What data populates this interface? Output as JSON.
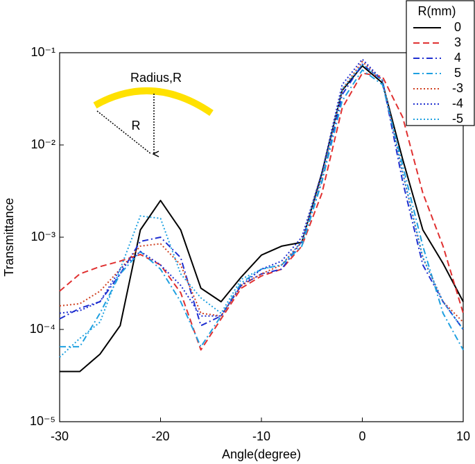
{
  "chart_data": {
    "type": "line",
    "yscale": "log",
    "xlabel": "Angle(degree)",
    "ylabel": "Transmittance",
    "annotations": [
      "Radius,R",
      "R"
    ],
    "legend_title": "R(mm)",
    "legend": "upper right",
    "xlim": [
      -30,
      10
    ],
    "xticks": [
      -30,
      -20,
      -10,
      0,
      10
    ],
    "ylim": [
      1e-05,
      0.1
    ],
    "yticks": [
      {
        "value": 1e-05,
        "label": "10⁻⁵"
      },
      {
        "value": 0.0001,
        "label": "10⁻⁴"
      },
      {
        "value": 0.001,
        "label": "10⁻³"
      },
      {
        "value": 0.01,
        "label": "10⁻²"
      },
      {
        "value": 0.1,
        "label": "10⁻¹"
      }
    ],
    "x": [
      -30,
      -28,
      -26,
      -24,
      -22,
      -20,
      -18,
      -16,
      -14,
      -12,
      -10,
      -8,
      -6,
      -4,
      -2,
      0,
      2,
      4,
      6,
      8,
      10
    ],
    "series": [
      {
        "name": "0",
        "color": "#000000",
        "dash": "solid",
        "values": [
          3.5e-05,
          3.5e-05,
          5.4e-05,
          0.00011,
          0.0012,
          0.0025,
          0.0012,
          0.00028,
          0.0002,
          0.00037,
          0.00064,
          0.0008,
          0.00088,
          0.005,
          0.039,
          0.072,
          0.047,
          0.007,
          0.0012,
          0.00052,
          0.0002
        ]
      },
      {
        "name": "3",
        "color": "#e03030",
        "dash": "dashed",
        "values": [
          0.00026,
          0.0004,
          0.00048,
          0.00055,
          0.00065,
          0.0005,
          0.00025,
          6e-05,
          0.00013,
          0.00028,
          0.00038,
          0.00045,
          0.0008,
          0.003,
          0.025,
          0.06,
          0.055,
          0.02,
          0.003,
          0.0008,
          0.00015
        ]
      },
      {
        "name": "4",
        "color": "#1f2fd0",
        "dash": "dashdot",
        "values": [
          0.00013,
          0.00017,
          0.0002,
          0.0004,
          0.0009,
          0.001,
          0.0006,
          0.00011,
          0.00014,
          0.0003,
          0.0004,
          0.00045,
          0.0009,
          0.004,
          0.035,
          0.075,
          0.05,
          0.004,
          0.0005,
          0.0002,
          0.0001
        ]
      },
      {
        "name": "5",
        "color": "#1ea0e0",
        "dash": "dashdot",
        "values": [
          6.5e-05,
          6.5e-05,
          0.00015,
          0.0004,
          0.0007,
          0.00045,
          0.0002,
          6.5e-05,
          0.00014,
          0.00032,
          0.00045,
          0.0005,
          0.0008,
          0.004,
          0.03,
          0.065,
          0.045,
          0.006,
          0.0008,
          0.00015,
          6e-05
        ]
      },
      {
        "name": "-3",
        "color": "#d04020",
        "dash": "dotted",
        "values": [
          0.00018,
          0.00019,
          0.00026,
          0.00045,
          0.0008,
          0.00085,
          0.0005,
          0.00015,
          0.00014,
          0.0003,
          0.0004,
          0.0005,
          0.0009,
          0.0045,
          0.04,
          0.08,
          0.05,
          0.005,
          0.0006,
          0.0002,
          0.00012
        ]
      },
      {
        "name": "-4",
        "color": "#1f2fd0",
        "dash": "dotted",
        "values": [
          0.00015,
          0.00016,
          0.0002,
          0.00045,
          0.0007,
          0.0005,
          0.0003,
          0.00014,
          0.00014,
          0.0003,
          0.00045,
          0.00055,
          0.001,
          0.005,
          0.045,
          0.085,
          0.05,
          0.005,
          0.0006,
          0.0002,
          0.0001
        ]
      },
      {
        "name": "-5",
        "color": "#1ea0e0",
        "dash": "dotted",
        "values": [
          5e-05,
          8e-05,
          0.00012,
          0.00045,
          0.0017,
          0.0016,
          0.0004,
          0.00022,
          0.00015,
          0.00035,
          0.00045,
          0.0005,
          0.0009,
          0.0045,
          0.04,
          0.075,
          0.05,
          0.005,
          0.0006,
          0.0002,
          0.0001
        ]
      }
    ]
  }
}
